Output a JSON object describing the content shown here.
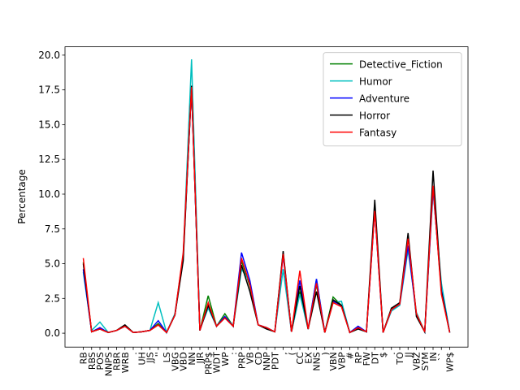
{
  "chart_data": {
    "type": "line",
    "ylabel": "Percentage",
    "categories": [
      "RB",
      "RBS",
      "POS",
      "NNPS",
      "RBR",
      "WRB",
      ".",
      "UH",
      "JJS",
      "''",
      "LS",
      "VBG",
      "VBD",
      "NN",
      "JJR",
      "PRP$",
      "WDT",
      "WP",
      ":",
      "PRP",
      "VB",
      "CD",
      "NNP",
      "PDT",
      ",",
      "(",
      "CC",
      "EX",
      "NNS",
      ")",
      "VBN",
      "VBP",
      "#",
      "RP",
      "FW",
      "DT",
      "$",
      ".",
      "TO",
      "JJ",
      "VBZ",
      "SYM",
      "IN",
      "``",
      "WP$"
    ],
    "series": [
      {
        "name": "Detective_Fiction",
        "color": "#008000",
        "values": [
          5.1,
          0.1,
          0.3,
          0.05,
          0.2,
          0.5,
          0.05,
          0.1,
          0.2,
          0.7,
          0.05,
          1.3,
          5.5,
          17.7,
          0.2,
          2.7,
          0.5,
          1.4,
          0.5,
          5.2,
          3.4,
          0.6,
          0.4,
          0.1,
          5.8,
          0.1,
          3.0,
          0.3,
          3.5,
          0.05,
          2.6,
          2.0,
          0.05,
          0.4,
          0.1,
          9.0,
          0.05,
          1.8,
          2.1,
          6.9,
          1.3,
          0.1,
          10.5,
          3.0,
          0.05
        ]
      },
      {
        "name": "Humor",
        "color": "#00bfbf",
        "values": [
          4.4,
          0.2,
          0.8,
          0.05,
          0.2,
          0.5,
          0.05,
          0.1,
          0.2,
          2.2,
          0.05,
          1.4,
          5.6,
          19.7,
          0.3,
          1.8,
          0.5,
          1.2,
          0.5,
          4.6,
          3.7,
          0.6,
          0.4,
          0.1,
          4.6,
          0.1,
          2.8,
          0.3,
          3.9,
          0.05,
          2.2,
          2.3,
          0.05,
          0.5,
          0.1,
          8.9,
          0.05,
          1.6,
          2.0,
          6.0,
          1.5,
          0.1,
          10.2,
          3.6,
          0.05
        ]
      },
      {
        "name": "Adventure",
        "color": "#0000ff",
        "values": [
          4.6,
          0.1,
          0.4,
          0.05,
          0.2,
          0.5,
          0.05,
          0.1,
          0.2,
          0.9,
          0.05,
          1.3,
          5.6,
          17.6,
          0.2,
          2.0,
          0.5,
          1.2,
          0.5,
          5.8,
          3.8,
          0.6,
          0.4,
          0.1,
          5.6,
          0.1,
          3.8,
          0.3,
          3.9,
          0.05,
          2.3,
          2.0,
          0.05,
          0.5,
          0.1,
          8.8,
          0.05,
          1.7,
          2.1,
          6.3,
          1.3,
          0.1,
          10.4,
          3.1,
          0.05
        ]
      },
      {
        "name": "Horror",
        "color": "#000000",
        "values": [
          5.0,
          0.1,
          0.3,
          0.05,
          0.2,
          0.6,
          0.05,
          0.1,
          0.2,
          0.6,
          0.05,
          1.3,
          5.2,
          17.8,
          0.2,
          2.0,
          0.5,
          1.1,
          0.5,
          4.9,
          3.0,
          0.6,
          0.3,
          0.1,
          5.9,
          0.1,
          3.4,
          0.3,
          3.0,
          0.05,
          2.4,
          2.0,
          0.05,
          0.3,
          0.1,
          9.6,
          0.05,
          1.8,
          2.2,
          7.2,
          1.2,
          0.1,
          11.7,
          3.0,
          0.05
        ]
      },
      {
        "name": "Fantasy",
        "color": "#ff0000",
        "values": [
          5.4,
          0.1,
          0.3,
          0.05,
          0.2,
          0.5,
          0.05,
          0.1,
          0.2,
          0.6,
          0.05,
          1.3,
          5.8,
          17.7,
          0.2,
          2.2,
          0.5,
          1.1,
          0.5,
          5.4,
          3.5,
          0.6,
          0.4,
          0.1,
          5.7,
          0.1,
          4.5,
          0.3,
          3.6,
          0.05,
          2.2,
          1.9,
          0.05,
          0.4,
          0.1,
          8.8,
          0.05,
          1.7,
          2.1,
          6.8,
          1.4,
          0.1,
          10.6,
          2.8,
          0.05
        ]
      }
    ],
    "ylim": [
      -1.0,
      20.6
    ],
    "yticks": [
      {
        "value": 0,
        "label": "0.0"
      },
      {
        "value": 2.5,
        "label": "2.5"
      },
      {
        "value": 5,
        "label": "5.0"
      },
      {
        "value": 7.5,
        "label": "7.5"
      },
      {
        "value": 10,
        "label": "10.0"
      },
      {
        "value": 12.5,
        "label": "12.5"
      },
      {
        "value": 15,
        "label": "15.0"
      },
      {
        "value": 17.5,
        "label": "17.5"
      },
      {
        "value": 20,
        "label": "20.0"
      }
    ],
    "legend": "upper right"
  }
}
